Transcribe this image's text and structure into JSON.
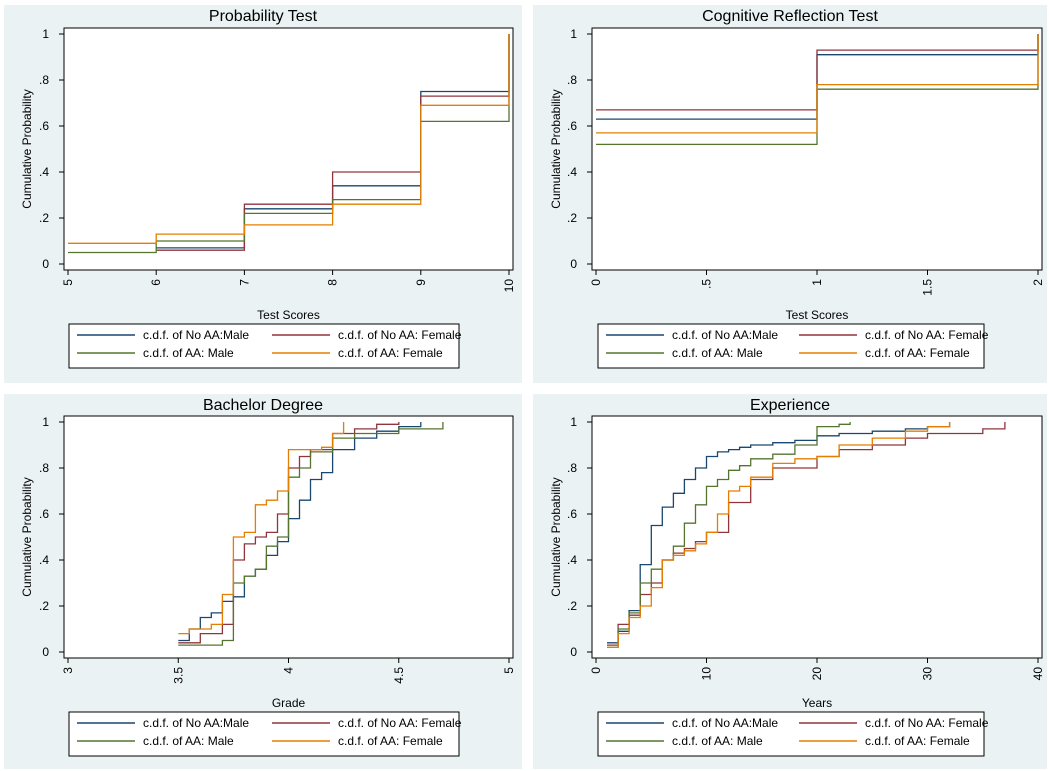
{
  "colors": {
    "no_aa_male": "#1a476f",
    "no_aa_female": "#90353b",
    "aa_male": "#55752f",
    "aa_female": "#e37e00",
    "panel_bg": "#eaf2f3"
  },
  "chart_data": [
    {
      "type": "line",
      "step": true,
      "title": "Probability Test",
      "xlabel": "Test Scores",
      "ylabel": "Cumulative Probability",
      "xlim": [
        5,
        10
      ],
      "ylim": [
        0,
        1
      ],
      "xticks": [
        5,
        6,
        7,
        8,
        9,
        10
      ],
      "xtick_labels": [
        "5",
        "6",
        "7",
        "8",
        "9",
        "10"
      ],
      "yticks": [
        0,
        0.2,
        0.4,
        0.6,
        0.8,
        1
      ],
      "ytick_labels": [
        "0",
        ".2",
        ".4",
        ".6",
        ".8",
        "1"
      ],
      "legend": [
        "c.d.f. of  No AA:Male",
        "c.d.f. of  No AA: Female",
        "c.d.f. of  AA: Male",
        "c.d.f. of  AA: Female"
      ],
      "series": [
        {
          "x": [
            6,
            7,
            8,
            9,
            10
          ],
          "y": [
            0.07,
            0.24,
            0.34,
            0.75,
            1.0
          ]
        },
        {
          "x": [
            6,
            7,
            8,
            9,
            10
          ],
          "y": [
            0.06,
            0.26,
            0.4,
            0.73,
            1.0
          ]
        },
        {
          "x": [
            5,
            6,
            7,
            8,
            9,
            10
          ],
          "y": [
            0.05,
            0.1,
            0.22,
            0.28,
            0.62,
            1.0
          ]
        },
        {
          "x": [
            5,
            6,
            7,
            8,
            9,
            10
          ],
          "y": [
            0.09,
            0.13,
            0.17,
            0.26,
            0.69,
            1.0
          ]
        }
      ]
    },
    {
      "type": "line",
      "step": true,
      "title": "Cognitive Reflection Test",
      "xlabel": "Test Scores",
      "ylabel": "Cumulative Probability",
      "xlim": [
        0,
        2
      ],
      "ylim": [
        0,
        1
      ],
      "xticks": [
        0,
        0.5,
        1,
        1.5,
        2
      ],
      "xtick_labels": [
        "0",
        ".5",
        "1",
        "1.5",
        "2"
      ],
      "yticks": [
        0,
        0.2,
        0.4,
        0.6,
        0.8,
        1
      ],
      "ytick_labels": [
        "0",
        ".2",
        ".4",
        ".6",
        ".8",
        "1"
      ],
      "legend": [
        "c.d.f. of  No AA:Male",
        "c.d.f. of  No AA: Female",
        "c.d.f. of  AA: Male",
        "c.d.f. of  AA: Female"
      ],
      "series": [
        {
          "x": [
            0,
            1,
            2
          ],
          "y": [
            0.63,
            0.91,
            1.0
          ]
        },
        {
          "x": [
            0,
            1,
            2
          ],
          "y": [
            0.67,
            0.93,
            1.0
          ]
        },
        {
          "x": [
            0,
            1,
            2
          ],
          "y": [
            0.52,
            0.76,
            1.0
          ]
        },
        {
          "x": [
            0,
            1,
            2
          ],
          "y": [
            0.57,
            0.78,
            1.0
          ]
        }
      ]
    },
    {
      "type": "line",
      "step": true,
      "title": "Bachelor Degree",
      "xlabel": "Grade",
      "ylabel": "Cumulative Probability",
      "xlim": [
        3,
        5
      ],
      "ylim": [
        0,
        1
      ],
      "xticks": [
        3,
        3.5,
        4,
        4.5,
        5
      ],
      "xtick_labels": [
        "3",
        "3.5",
        "4",
        "4.5",
        "5"
      ],
      "yticks": [
        0,
        0.2,
        0.4,
        0.6,
        0.8,
        1
      ],
      "ytick_labels": [
        "0",
        ".2",
        ".4",
        ".6",
        ".8",
        "1"
      ],
      "legend": [
        "c.d.f. of  No AA:Male",
        "c.d.f. of  No AA: Female",
        "c.d.f. of  AA: Male",
        "c.d.f. of  AA: Female"
      ],
      "series": [
        {
          "x": [
            3.5,
            3.55,
            3.6,
            3.65,
            3.7,
            3.75,
            3.8,
            3.85,
            3.9,
            3.95,
            4.0,
            4.05,
            4.1,
            4.15,
            4.2,
            4.3,
            4.4,
            4.5,
            4.6
          ],
          "y": [
            0.05,
            0.1,
            0.15,
            0.17,
            0.22,
            0.24,
            0.33,
            0.36,
            0.42,
            0.48,
            0.58,
            0.66,
            0.75,
            0.78,
            0.88,
            0.93,
            0.96,
            0.98,
            1.0
          ]
        },
        {
          "x": [
            3.5,
            3.6,
            3.7,
            3.75,
            3.8,
            3.85,
            3.9,
            3.95,
            4.0,
            4.05,
            4.1,
            4.2,
            4.3,
            4.4,
            4.5
          ],
          "y": [
            0.04,
            0.08,
            0.12,
            0.4,
            0.47,
            0.5,
            0.52,
            0.6,
            0.8,
            0.85,
            0.88,
            0.95,
            0.97,
            0.99,
            1.0
          ]
        },
        {
          "x": [
            3.5,
            3.7,
            3.75,
            3.8,
            3.85,
            3.9,
            3.95,
            4.0,
            4.05,
            4.1,
            4.2,
            4.3,
            4.5,
            4.7
          ],
          "y": [
            0.03,
            0.05,
            0.3,
            0.33,
            0.36,
            0.46,
            0.5,
            0.76,
            0.8,
            0.87,
            0.93,
            0.95,
            0.97,
            1.0
          ]
        },
        {
          "x": [
            3.5,
            3.55,
            3.65,
            3.7,
            3.75,
            3.8,
            3.85,
            3.9,
            3.95,
            4.0,
            4.05,
            4.1,
            4.15,
            4.2,
            4.25
          ],
          "y": [
            0.08,
            0.1,
            0.12,
            0.25,
            0.5,
            0.52,
            0.64,
            0.66,
            0.7,
            0.88,
            0.88,
            0.88,
            0.89,
            0.95,
            1.0
          ]
        }
      ]
    },
    {
      "type": "line",
      "step": true,
      "title": "Experience",
      "xlabel": "Years",
      "ylabel": "Cumulative Probability",
      "xlim": [
        0,
        40
      ],
      "ylim": [
        0,
        1
      ],
      "xticks": [
        0,
        10,
        20,
        30,
        40
      ],
      "xtick_labels": [
        "0",
        "10",
        "20",
        "30",
        "40"
      ],
      "yticks": [
        0,
        0.2,
        0.4,
        0.6,
        0.8,
        1
      ],
      "ytick_labels": [
        "0",
        ".2",
        ".4",
        ".6",
        ".8",
        "1"
      ],
      "legend": [
        "c.d.f. of  No AA:Male",
        "c.d.f. of  No AA: Female",
        "c.d.f. of  AA: Male",
        "c.d.f. of  AA: Female"
      ],
      "series": [
        {
          "x": [
            1,
            2,
            3,
            4,
            5,
            6,
            7,
            8,
            9,
            10,
            11,
            12,
            13,
            14,
            16,
            18,
            20,
            22,
            25,
            28,
            30,
            32
          ],
          "y": [
            0.04,
            0.09,
            0.18,
            0.38,
            0.55,
            0.63,
            0.69,
            0.75,
            0.8,
            0.85,
            0.87,
            0.88,
            0.89,
            0.9,
            0.91,
            0.92,
            0.94,
            0.95,
            0.96,
            0.97,
            0.98,
            1.0
          ]
        },
        {
          "x": [
            1,
            2,
            3,
            4,
            5,
            6,
            7,
            8,
            9,
            10,
            12,
            14,
            16,
            20,
            22,
            25,
            28,
            30,
            35,
            37
          ],
          "y": [
            0.03,
            0.12,
            0.16,
            0.25,
            0.3,
            0.4,
            0.43,
            0.45,
            0.48,
            0.52,
            0.65,
            0.75,
            0.8,
            0.85,
            0.88,
            0.9,
            0.93,
            0.95,
            0.97,
            1.0
          ]
        },
        {
          "x": [
            1,
            2,
            3,
            4,
            5,
            6,
            7,
            8,
            9,
            10,
            11,
            12,
            13,
            14,
            16,
            18,
            20,
            22,
            23
          ],
          "y": [
            0.02,
            0.1,
            0.17,
            0.3,
            0.36,
            0.4,
            0.46,
            0.56,
            0.64,
            0.72,
            0.75,
            0.79,
            0.81,
            0.84,
            0.86,
            0.9,
            0.98,
            0.99,
            1.0
          ]
        },
        {
          "x": [
            1,
            2,
            3,
            4,
            5,
            6,
            7,
            8,
            9,
            10,
            11,
            12,
            13,
            14,
            16,
            18,
            20,
            22,
            25,
            28,
            30,
            32
          ],
          "y": [
            0.02,
            0.08,
            0.15,
            0.2,
            0.28,
            0.4,
            0.42,
            0.44,
            0.47,
            0.52,
            0.6,
            0.7,
            0.72,
            0.76,
            0.82,
            0.84,
            0.85,
            0.9,
            0.93,
            0.96,
            0.98,
            1.0
          ]
        }
      ]
    }
  ]
}
